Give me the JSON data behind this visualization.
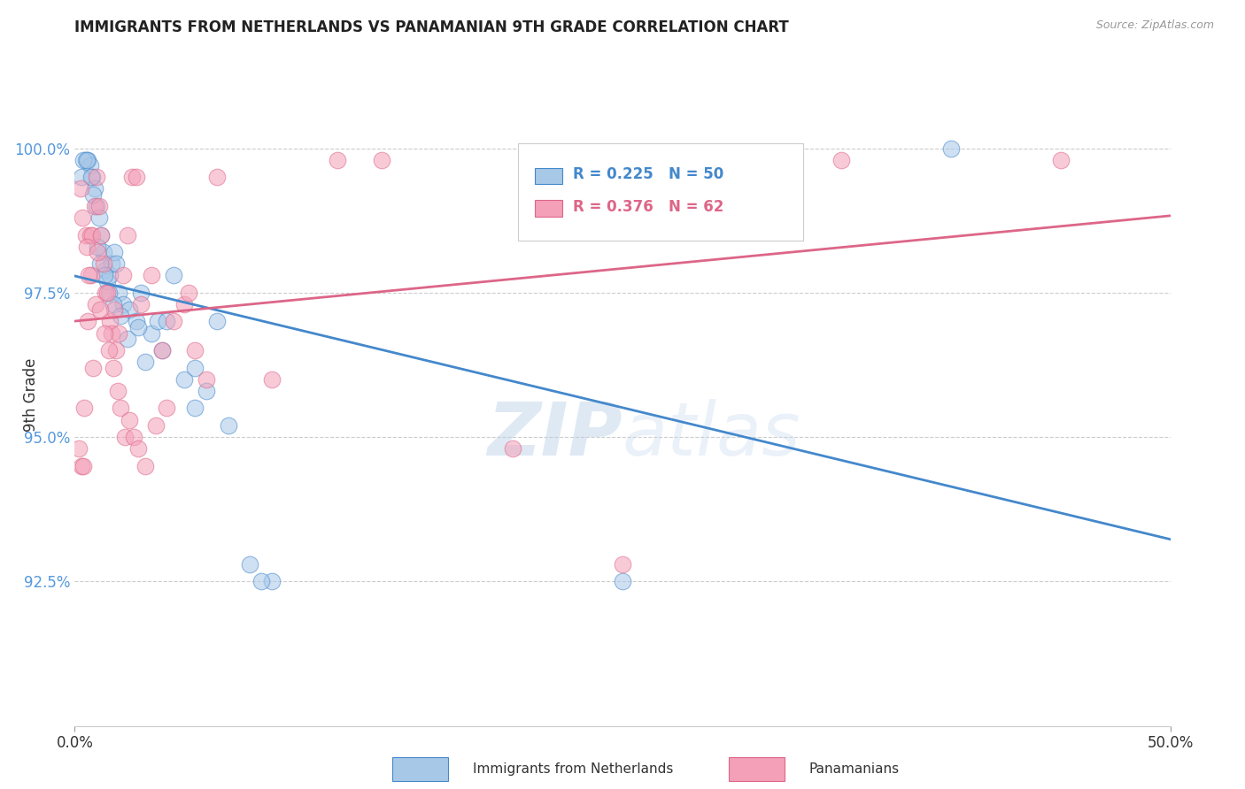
{
  "title": "IMMIGRANTS FROM NETHERLANDS VS PANAMANIAN 9TH GRADE CORRELATION CHART",
  "source": "Source: ZipAtlas.com",
  "ylabel": "9th Grade",
  "yticks": [
    92.5,
    95.0,
    97.5,
    100.0
  ],
  "ytick_labels": [
    "92.5%",
    "95.0%",
    "97.5%",
    "100.0%"
  ],
  "xlim": [
    0.0,
    50.0
  ],
  "ylim": [
    90.0,
    101.2
  ],
  "legend_r1": "R = 0.225",
  "legend_n1": "N = 50",
  "legend_r2": "R = 0.376",
  "legend_n2": "N = 62",
  "color_blue": "#a8c8e8",
  "color_pink": "#f4a0b8",
  "color_blue_line": "#4488cc",
  "color_pink_line": "#dd6688",
  "color_ytick_label": "#5599dd",
  "watermark_zip": "ZIP",
  "watermark_atlas": "atlas",
  "legend_label_1": "Immigrants from Netherlands",
  "legend_label_2": "Panamanians",
  "blue_x": [
    0.5,
    0.6,
    0.7,
    0.8,
    0.9,
    1.0,
    1.1,
    1.2,
    1.3,
    1.4,
    1.5,
    1.6,
    1.7,
    1.8,
    1.9,
    2.0,
    2.2,
    2.5,
    2.8,
    3.0,
    3.5,
    4.0,
    4.5,
    5.0,
    5.5,
    6.0,
    7.0,
    8.0,
    9.0,
    0.3,
    0.4,
    0.55,
    0.75,
    0.85,
    1.05,
    1.15,
    1.35,
    1.55,
    1.75,
    2.1,
    2.4,
    2.9,
    3.2,
    3.8,
    4.2,
    5.5,
    6.5,
    8.5,
    25.0,
    40.0
  ],
  "blue_y": [
    99.8,
    99.8,
    99.7,
    99.5,
    99.3,
    99.0,
    98.8,
    98.5,
    98.2,
    97.9,
    97.7,
    97.8,
    98.0,
    98.2,
    98.0,
    97.5,
    97.3,
    97.2,
    97.0,
    97.5,
    96.8,
    96.5,
    97.8,
    96.0,
    95.5,
    95.8,
    95.2,
    92.8,
    92.5,
    99.5,
    99.8,
    99.8,
    99.5,
    99.2,
    98.3,
    98.0,
    97.8,
    97.5,
    97.3,
    97.1,
    96.7,
    96.9,
    96.3,
    97.0,
    97.0,
    96.2,
    97.0,
    92.5,
    92.5,
    100.0
  ],
  "pink_x": [
    0.2,
    0.3,
    0.4,
    0.5,
    0.6,
    0.7,
    0.8,
    0.9,
    1.0,
    1.1,
    1.2,
    1.3,
    1.4,
    1.5,
    1.6,
    1.7,
    1.8,
    1.9,
    2.0,
    2.2,
    2.4,
    2.6,
    2.8,
    3.0,
    3.5,
    4.0,
    4.5,
    5.0,
    5.5,
    6.0,
    0.35,
    0.55,
    0.75,
    0.95,
    1.15,
    1.35,
    1.55,
    1.75,
    1.95,
    2.1,
    2.3,
    2.5,
    2.7,
    2.9,
    3.2,
    3.7,
    4.2,
    5.2,
    6.5,
    9.0,
    12.0,
    14.0,
    20.0,
    25.0,
    30.0,
    35.0,
    45.0,
    0.25,
    0.45,
    0.65,
    0.85,
    1.05
  ],
  "pink_y": [
    94.8,
    94.5,
    94.5,
    98.5,
    97.0,
    98.5,
    98.5,
    99.0,
    99.5,
    99.0,
    98.5,
    98.0,
    97.5,
    97.5,
    97.0,
    96.8,
    97.2,
    96.5,
    96.8,
    97.8,
    98.5,
    99.5,
    99.5,
    97.3,
    97.8,
    96.5,
    97.0,
    97.3,
    96.5,
    96.0,
    98.8,
    98.3,
    97.8,
    97.3,
    97.2,
    96.8,
    96.5,
    96.2,
    95.8,
    95.5,
    95.0,
    95.3,
    95.0,
    94.8,
    94.5,
    95.2,
    95.5,
    97.5,
    99.5,
    96.0,
    99.8,
    99.8,
    94.8,
    92.8,
    99.8,
    99.8,
    99.8,
    99.3,
    95.5,
    97.8,
    96.2,
    98.2
  ]
}
